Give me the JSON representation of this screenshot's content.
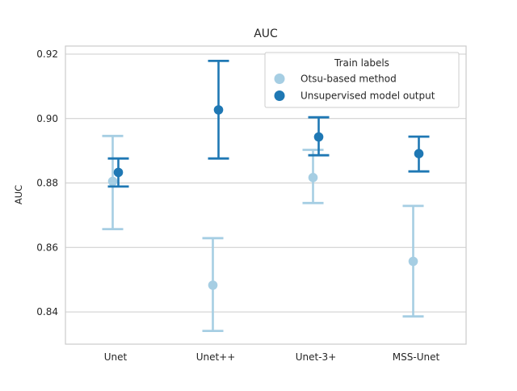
{
  "figure": {
    "title": "AUC",
    "ylabel": "AUC",
    "legend": {
      "title": "Train labels",
      "items": [
        {
          "label": "Otsu-based method",
          "color": "#a6cee3"
        },
        {
          "label": "Unsupervised model output",
          "color": "#1f78b4"
        }
      ]
    }
  },
  "chart_data": {
    "type": "scatter",
    "subtype": "point-plot-with-error-bars",
    "title": "AUC",
    "xlabel": "",
    "ylabel": "AUC",
    "categories": [
      "Unet",
      "Unet++",
      "Unet-3+",
      "MSS-Unet"
    ],
    "series": [
      {
        "name": "Otsu-based method",
        "color": "#a6cee3",
        "values": [
          0.8805,
          0.8483,
          0.8817,
          0.8557
        ],
        "err_low": [
          0.8657,
          0.8341,
          0.8738,
          0.8386
        ],
        "err_high": [
          0.8946,
          0.8629,
          0.8903,
          0.8729
        ]
      },
      {
        "name": "Unsupervised model output",
        "color": "#1f78b4",
        "values": [
          0.8833,
          0.9027,
          0.8943,
          0.8891
        ],
        "err_low": [
          0.8789,
          0.8876,
          0.8886,
          0.8836
        ],
        "err_high": [
          0.8876,
          0.9179,
          0.9004,
          0.8944
        ]
      }
    ],
    "ytick_values": [
      0.92,
      0.9,
      0.88,
      0.86,
      0.84
    ],
    "ytick_labels": [
      "0.92",
      "0.90",
      "0.88",
      "0.86",
      "0.84"
    ],
    "ylim": [
      0.83,
      0.9225
    ],
    "grid": "horizontal",
    "legend_title": "Train labels",
    "legend_position": "upper right"
  },
  "style": {
    "grid_color": "#cccccc",
    "text_color": "#262626",
    "background": "#ffffff"
  }
}
